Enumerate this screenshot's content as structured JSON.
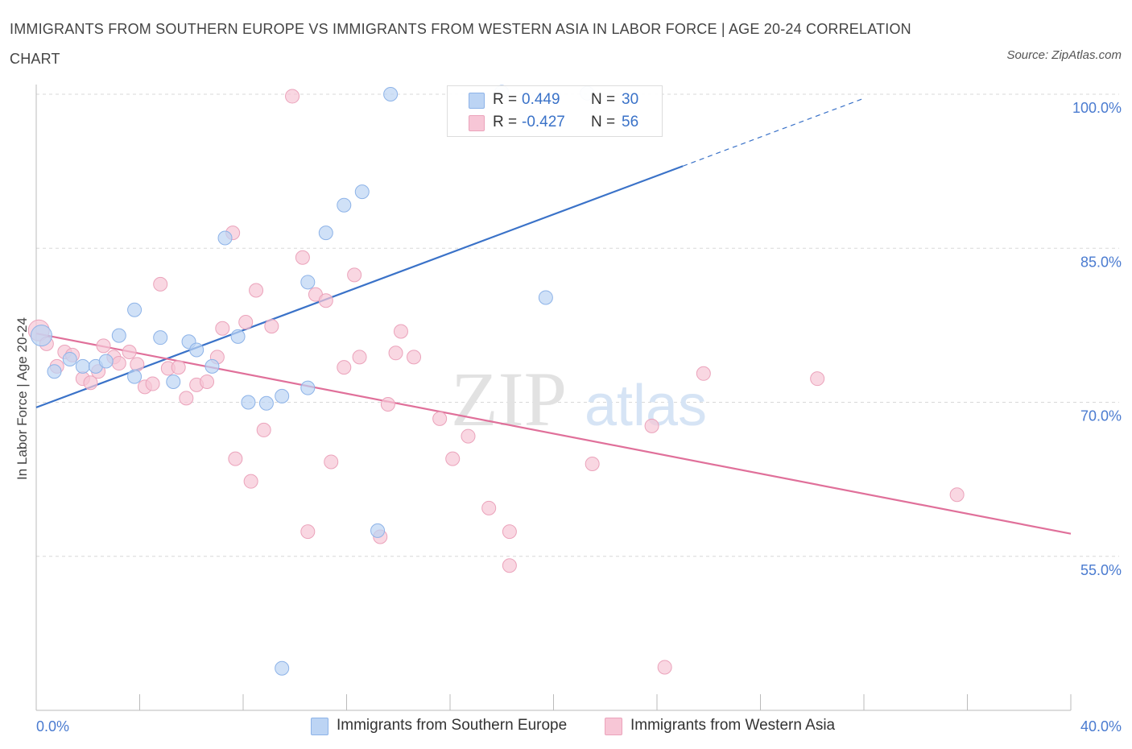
{
  "title": "IMMIGRANTS FROM SOUTHERN EUROPE VS IMMIGRANTS FROM WESTERN ASIA IN LABOR FORCE | AGE 20-24 CORRELATION CHART",
  "source": "Source: ZipAtlas.com",
  "watermark": {
    "zip": "ZIP",
    "atlas": "atlas"
  },
  "legend": {
    "rows": [
      {
        "r_label": "R =",
        "r_value": "0.449",
        "n_label": "N =",
        "n_value": "30"
      },
      {
        "r_label": "R =",
        "r_value": "-0.427",
        "n_label": "N =",
        "n_value": "56"
      }
    ]
  },
  "colors": {
    "blue_fill": "#bcd4f4",
    "blue_stroke": "#8db3e8",
    "blue_line": "#3a72c8",
    "pink_fill": "#f7c6d6",
    "pink_stroke": "#eba3bb",
    "pink_line": "#e0709a",
    "tick_text": "#4a7bd0",
    "grid": "#d8d8d8"
  },
  "chart_data": {
    "type": "scatter",
    "title": "IMMIGRANTS FROM SOUTHERN EUROPE VS IMMIGRANTS FROM WESTERN ASIA IN LABOR FORCE | AGE 20-24 CORRELATION CHART",
    "xlabel": "",
    "ylabel": "In Labor Force | Age 20-24",
    "xlim": [
      0,
      40
    ],
    "ylim": [
      40,
      100
    ],
    "x_tick_labels": [
      "0.0%",
      "40.0%"
    ],
    "y_ticks": [
      55,
      70,
      85,
      100
    ],
    "y_tick_labels": [
      "55.0%",
      "70.0%",
      "85.0%",
      "100.0%"
    ],
    "grid": true,
    "legend_position": "top-center",
    "series": [
      {
        "name": "Immigrants from Southern Europe",
        "color": "#bcd4f4",
        "R": 0.449,
        "N": 30,
        "trend": {
          "x": [
            0,
            25
          ],
          "y": [
            69.5,
            93.0
          ],
          "dashed_extension_to": [
            32,
            99.6
          ]
        },
        "points": [
          [
            0.2,
            76.5
          ],
          [
            0.7,
            73.0
          ],
          [
            1.3,
            74.2
          ],
          [
            1.8,
            73.5
          ],
          [
            2.3,
            73.5
          ],
          [
            2.7,
            74.0
          ],
          [
            3.2,
            76.5
          ],
          [
            3.8,
            79.0
          ],
          [
            3.8,
            72.5
          ],
          [
            4.8,
            76.3
          ],
          [
            5.3,
            72.0
          ],
          [
            5.9,
            75.9
          ],
          [
            6.2,
            75.1
          ],
          [
            6.8,
            73.5
          ],
          [
            7.3,
            86.0
          ],
          [
            7.8,
            76.4
          ],
          [
            8.2,
            70.0
          ],
          [
            8.9,
            69.9
          ],
          [
            9.5,
            70.6
          ],
          [
            10.5,
            81.7
          ],
          [
            10.5,
            71.4
          ],
          [
            11.2,
            86.5
          ],
          [
            11.9,
            89.2
          ],
          [
            12.6,
            90.5
          ],
          [
            13.7,
            100.0
          ],
          [
            13.2,
            57.5
          ],
          [
            19.7,
            80.2
          ],
          [
            9.5,
            44.1
          ],
          [
            18.0,
            100.2
          ],
          [
            21.3,
            100.1
          ]
        ]
      },
      {
        "name": "Immigrants from Western Asia",
        "color": "#f7c6d6",
        "R": -0.427,
        "N": 56,
        "trend": {
          "x": [
            0,
            40
          ],
          "y": [
            76.7,
            57.2
          ]
        },
        "points": [
          [
            0.1,
            77.0
          ],
          [
            0.4,
            75.7
          ],
          [
            0.8,
            73.5
          ],
          [
            1.1,
            74.9
          ],
          [
            1.4,
            74.6
          ],
          [
            1.8,
            72.3
          ],
          [
            2.1,
            71.9
          ],
          [
            2.4,
            73.0
          ],
          [
            2.6,
            75.5
          ],
          [
            3.0,
            74.4
          ],
          [
            3.2,
            73.8
          ],
          [
            3.6,
            74.9
          ],
          [
            3.9,
            73.7
          ],
          [
            4.2,
            71.5
          ],
          [
            4.5,
            71.8
          ],
          [
            4.8,
            81.5
          ],
          [
            5.1,
            73.3
          ],
          [
            5.5,
            73.4
          ],
          [
            5.8,
            70.4
          ],
          [
            6.2,
            71.7
          ],
          [
            6.6,
            72.0
          ],
          [
            7.0,
            74.4
          ],
          [
            7.2,
            77.2
          ],
          [
            7.6,
            86.5
          ],
          [
            7.7,
            64.5
          ],
          [
            8.1,
            77.8
          ],
          [
            8.3,
            62.3
          ],
          [
            8.5,
            80.9
          ],
          [
            8.8,
            67.3
          ],
          [
            9.1,
            77.4
          ],
          [
            9.9,
            99.8
          ],
          [
            10.3,
            84.1
          ],
          [
            10.5,
            57.4
          ],
          [
            10.8,
            80.5
          ],
          [
            11.2,
            79.9
          ],
          [
            11.4,
            64.2
          ],
          [
            11.9,
            73.4
          ],
          [
            12.3,
            82.4
          ],
          [
            12.5,
            74.4
          ],
          [
            13.3,
            56.9
          ],
          [
            13.6,
            69.8
          ],
          [
            13.9,
            74.8
          ],
          [
            14.1,
            76.9
          ],
          [
            14.6,
            74.4
          ],
          [
            15.6,
            68.4
          ],
          [
            16.1,
            64.5
          ],
          [
            16.7,
            66.7
          ],
          [
            17.5,
            59.7
          ],
          [
            18.3,
            57.4
          ],
          [
            18.3,
            54.1
          ],
          [
            21.5,
            64.0
          ],
          [
            23.8,
            67.7
          ],
          [
            24.3,
            44.2
          ],
          [
            25.8,
            72.8
          ],
          [
            30.2,
            72.3
          ],
          [
            35.6,
            61.0
          ]
        ]
      }
    ]
  }
}
